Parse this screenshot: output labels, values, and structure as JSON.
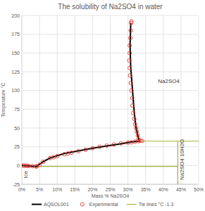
{
  "chart_data": {
    "type": "line",
    "title": "The solubility of Na2SO4 in water",
    "x_label": "Mass % Na2SO4",
    "y_label": "Temperature °C",
    "xlim": [
      0,
      50
    ],
    "ylim": [
      -25,
      200
    ],
    "xticks": [
      {
        "value": 0,
        "label": "0%"
      },
      {
        "value": 5,
        "label": "5%"
      },
      {
        "value": 10,
        "label": "10%"
      },
      {
        "value": 15,
        "label": "15%"
      },
      {
        "value": 20,
        "label": "20%"
      },
      {
        "value": 25,
        "label": "25%"
      },
      {
        "value": 30,
        "label": "30%"
      },
      {
        "value": 35,
        "label": "35%"
      },
      {
        "value": 40,
        "label": "40%"
      },
      {
        "value": 45,
        "label": "45%"
      },
      {
        "value": 50,
        "label": "50%"
      }
    ],
    "yticks": [
      -25,
      0,
      25,
      50,
      75,
      100,
      125,
      150,
      175,
      200
    ],
    "grid": true,
    "legend": "bottom",
    "series": [
      {
        "name": "AQSOL001",
        "color": "#000000",
        "type": "line",
        "line_style": "solid",
        "x": [
          0,
          2,
          4.1,
          6,
          8,
          12,
          16,
          20,
          24,
          28,
          31,
          33.2,
          32.8,
          32.3,
          31.8,
          31.3,
          30.8,
          30.6,
          30.8
        ],
        "values": [
          0,
          -0.6,
          -1.3,
          5,
          10,
          16,
          19.5,
          23,
          26,
          29,
          31.5,
          32.4,
          40,
          50,
          70,
          100,
          130,
          160,
          190
        ]
      },
      {
        "name": "Experimental",
        "color": "#e8332a",
        "type": "scatter",
        "marker": "circle",
        "x": [
          0,
          0.5,
          1,
          1.5,
          2,
          3,
          4,
          4.2,
          5,
          6,
          8,
          9,
          10,
          12,
          13,
          14,
          16,
          18,
          20,
          22,
          24,
          26,
          28,
          30,
          31,
          32,
          33,
          33.5,
          34,
          33,
          32.8,
          32.5,
          32.3,
          32,
          31.8,
          31.5,
          31.3,
          31.2,
          31,
          30.8,
          30.6,
          30.5,
          30.4,
          30.5,
          30.5,
          30.7,
          30.8,
          30.9,
          31
        ],
        "values": [
          0,
          -0.2,
          -0.3,
          -0.4,
          -0.6,
          -0.9,
          -1.2,
          -1.2,
          1,
          5,
          10,
          11,
          12.5,
          15,
          16,
          17,
          19,
          21,
          23,
          25,
          26.5,
          28,
          29.5,
          30.5,
          31,
          31.8,
          32.5,
          33,
          32.8,
          35,
          40,
          45,
          50,
          55,
          62,
          70,
          80,
          90,
          100,
          110,
          120,
          130,
          140,
          150,
          160,
          170,
          180,
          190,
          192
        ]
      },
      {
        "name": "Tie lines °C -1.3",
        "color": "#a3b43c",
        "type": "line",
        "line_style": "solid",
        "x": [
          4.1,
          44.1,
          null,
          44.1,
          44.1,
          null,
          33.2,
          50
        ],
        "values": [
          -1.3,
          -1.3,
          null,
          -25,
          32.4,
          null,
          32.4,
          32.4
        ]
      }
    ],
    "annotations": [
      {
        "text": "Ice",
        "x": 1.5,
        "y": -12,
        "orientation": "vertical"
      },
      {
        "text": "Na2SO4",
        "x": 38.5,
        "y": 110,
        "orientation": "horizontal"
      },
      {
        "text": "Na2SO4 10H2O",
        "x": 45.8,
        "y": 8,
        "orientation": "vertical"
      }
    ]
  }
}
